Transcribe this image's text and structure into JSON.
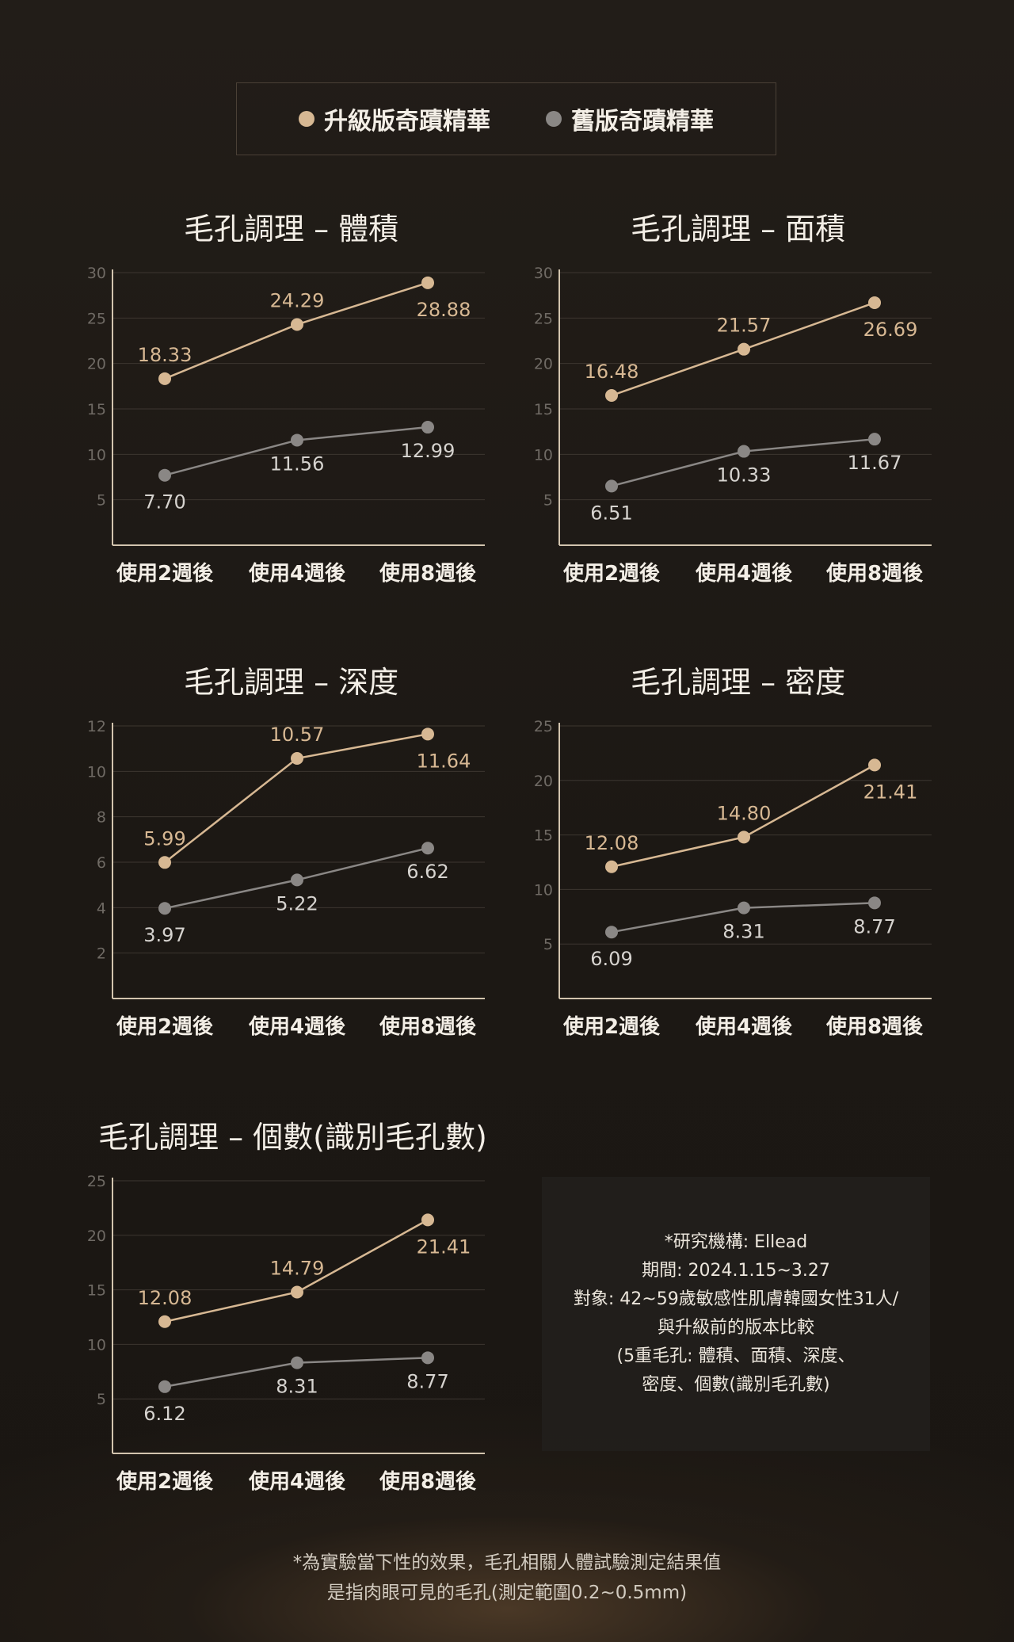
{
  "legend": {
    "new_label": "升級版奇蹟精華",
    "old_label": "舊版奇蹟精華",
    "new_color": "#d7b893",
    "old_color": "#8a8785"
  },
  "chart_data": [
    {
      "type": "line",
      "title": "毛孔調理 – 體積",
      "categories": [
        "使用2週後",
        "使用4週後",
        "使用8週後"
      ],
      "ylim": [
        0,
        30
      ],
      "yticks": [
        5,
        10,
        15,
        20,
        25,
        30
      ],
      "grid": true,
      "series": [
        {
          "name": "升級版奇蹟精華",
          "values": [
            18.33,
            24.29,
            28.88
          ],
          "labels": [
            "18.33",
            "24.29",
            "28.88"
          ]
        },
        {
          "name": "舊版奇蹟精華",
          "values": [
            7.7,
            11.56,
            12.99
          ],
          "labels": [
            "7.70",
            "11.56",
            "12.99"
          ]
        }
      ]
    },
    {
      "type": "line",
      "title": "毛孔調理 – 面積",
      "categories": [
        "使用2週後",
        "使用4週後",
        "使用8週後"
      ],
      "ylim": [
        0,
        30
      ],
      "yticks": [
        5,
        10,
        15,
        20,
        25,
        30
      ],
      "grid": true,
      "series": [
        {
          "name": "升級版奇蹟精華",
          "values": [
            16.48,
            21.57,
            26.69
          ],
          "labels": [
            "16.48",
            "21.57",
            "26.69"
          ]
        },
        {
          "name": "舊版奇蹟精華",
          "values": [
            6.51,
            10.33,
            11.67
          ],
          "labels": [
            "6.51",
            "10.33",
            "11.67"
          ]
        }
      ]
    },
    {
      "type": "line",
      "title": "毛孔調理 – 深度",
      "categories": [
        "使用2週後",
        "使用4週後",
        "使用8週後"
      ],
      "ylim": [
        0,
        12
      ],
      "yticks": [
        2,
        4,
        6,
        8,
        10,
        12
      ],
      "grid": true,
      "series": [
        {
          "name": "升級版奇蹟精華",
          "values": [
            5.99,
            10.57,
            11.64
          ],
          "labels": [
            "5.99",
            "10.57",
            "11.64"
          ]
        },
        {
          "name": "舊版奇蹟精華",
          "values": [
            3.97,
            5.22,
            6.62
          ],
          "labels": [
            "3.97",
            "5.22",
            "6.62"
          ]
        }
      ]
    },
    {
      "type": "line",
      "title": "毛孔調理 – 密度",
      "categories": [
        "使用2週後",
        "使用4週後",
        "使用8週後"
      ],
      "ylim": [
        0,
        25
      ],
      "yticks": [
        5,
        10,
        15,
        20,
        25
      ],
      "grid": true,
      "series": [
        {
          "name": "升級版奇蹟精華",
          "values": [
            12.08,
            14.8,
            21.41
          ],
          "labels": [
            "12.08",
            "14.80",
            "21.41"
          ]
        },
        {
          "name": "舊版奇蹟精華",
          "values": [
            6.09,
            8.31,
            8.77
          ],
          "labels": [
            "6.09",
            "8.31",
            "8.77"
          ]
        }
      ]
    },
    {
      "type": "line",
      "title": "毛孔調理 – 個數(識別毛孔數)",
      "categories": [
        "使用2週後",
        "使用4週後",
        "使用8週後"
      ],
      "ylim": [
        0,
        25
      ],
      "yticks": [
        5,
        10,
        15,
        20,
        25
      ],
      "grid": true,
      "series": [
        {
          "name": "升級版奇蹟精華",
          "values": [
            12.08,
            14.79,
            21.41
          ],
          "labels": [
            "12.08",
            "14.79",
            "21.41"
          ]
        },
        {
          "name": "舊版奇蹟精華",
          "values": [
            6.12,
            8.31,
            8.77
          ],
          "labels": [
            "6.12",
            "8.31",
            "8.77"
          ]
        }
      ]
    }
  ],
  "note": {
    "lines": [
      "*研究機構: Ellead",
      "期間: 2024.1.15~3.27",
      "對象: 42~59歲敏感性肌膚韓國女性31人/",
      "與升級前的版本比較",
      "(5重毛孔: 體積、面積、深度、",
      "密度、個數(識別毛孔數)"
    ]
  },
  "footer": {
    "line1": "*為實驗當下性的效果，毛孔相關人體試驗測定結果值",
    "line2": "是指肉眼可見的毛孔(測定範圍0.2~0.5mm)"
  }
}
